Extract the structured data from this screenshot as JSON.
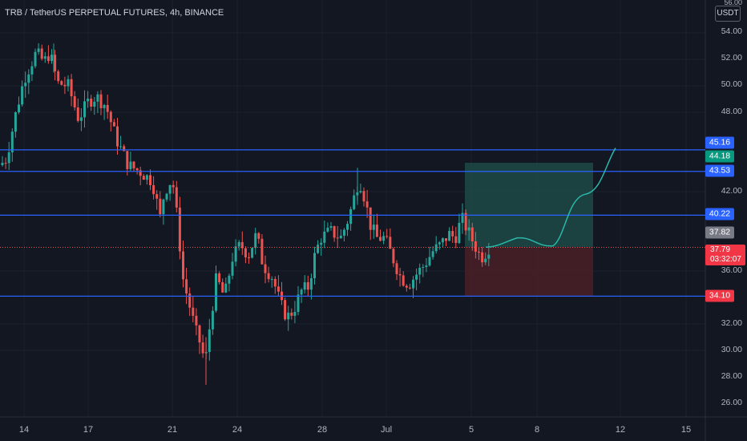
{
  "header": {
    "title": "TRB / TetherUS PERPETUAL FUTURES, 4h, BINANCE",
    "currency": "USDT"
  },
  "y_axis": {
    "top_partial": "56.00",
    "ticks": [
      "54.00",
      "52.00",
      "50.00",
      "48.00",
      "42.00",
      "36.00",
      "32.00",
      "30.00",
      "28.00",
      "26.00"
    ]
  },
  "x_axis": {
    "labels": [
      "14",
      "17",
      "21",
      "24",
      "28",
      "Jul",
      "5",
      "8",
      "12",
      "15"
    ]
  },
  "levels": [
    {
      "label": "45.16",
      "color": "#2962ff"
    },
    {
      "label": "44.18",
      "color": "#089981"
    },
    {
      "label": "43.53",
      "color": "#2962ff"
    },
    {
      "label": "40.22",
      "color": "#2962ff"
    },
    {
      "label": "37.82",
      "color": "#787b86"
    },
    {
      "label": "34.10",
      "color": "#f23645"
    }
  ],
  "current_price": {
    "price": "37.79",
    "countdown": "03:32:07",
    "color": "#f23645"
  },
  "colors": {
    "up": "#26a69a",
    "down": "#ef5350",
    "line": "#2962ff",
    "target_zone": "#1d4a47",
    "stop_zone": "#4a1f26",
    "projection": "#2ab7a9"
  },
  "chart_data": {
    "type": "candlestick",
    "symbol": "TRB / TetherUS PERPETUAL FUTURES",
    "interval": "4h",
    "exchange": "BINANCE",
    "ylim": [
      25,
      56.5
    ],
    "x_ticks": [
      "14",
      "17",
      "21",
      "24",
      "28",
      "Jul",
      "5",
      "8",
      "12",
      "15"
    ],
    "horizontal_levels": [
      45.16,
      43.53,
      40.22,
      34.1
    ],
    "position": {
      "entry": 37.82,
      "target": 44.18,
      "stop": 34.1
    },
    "last_price": 37.79
  }
}
